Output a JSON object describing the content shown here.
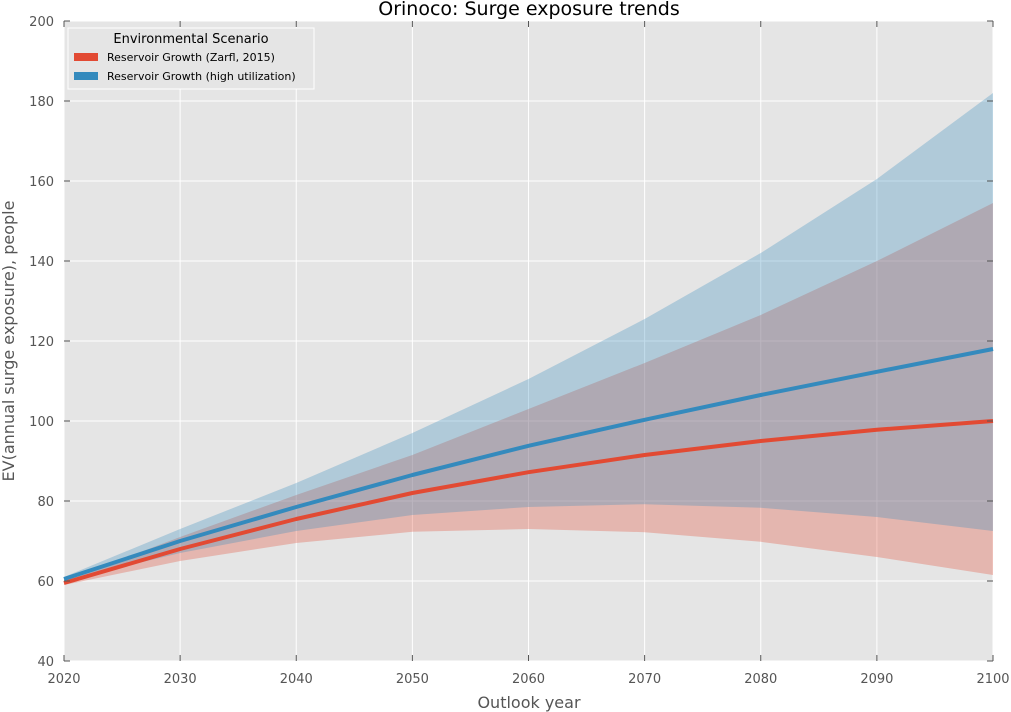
{
  "chart_data": {
    "type": "line",
    "title": "Orinoco: Surge exposure trends",
    "xlabel": "Outlook year",
    "ylabel": "EV(annual surge exposure), people",
    "xlim": [
      2020,
      2100
    ],
    "ylim": [
      40,
      200
    ],
    "xticks": [
      2020,
      2030,
      2040,
      2050,
      2060,
      2070,
      2080,
      2090,
      2100
    ],
    "yticks": [
      40,
      60,
      80,
      100,
      120,
      140,
      160,
      180,
      200
    ],
    "grid": true,
    "legend": {
      "title": "Environmental Scenario",
      "placement": "top-left"
    },
    "x": [
      2020,
      2030,
      2040,
      2050,
      2060,
      2070,
      2080,
      2090,
      2100
    ],
    "series": [
      {
        "name": "Reservoir Growth (Zarfl, 2015)",
        "color": "#e24a33",
        "band_color": "#e24a33",
        "values": [
          59.5,
          68.0,
          75.5,
          82.0,
          87.2,
          91.5,
          95.0,
          97.8,
          100.0
        ],
        "lower": [
          59.0,
          65.0,
          69.5,
          72.3,
          73.0,
          72.2,
          69.8,
          66.0,
          61.5
        ],
        "upper": [
          60.0,
          71.0,
          81.5,
          91.5,
          103.0,
          114.5,
          126.5,
          140.0,
          154.5
        ]
      },
      {
        "name": "Reservoir Growth (high utilization)",
        "color": "#348abd",
        "band_color": "#348abd",
        "values": [
          60.5,
          70.0,
          78.5,
          86.5,
          93.8,
          100.3,
          106.5,
          112.3,
          118.0
        ],
        "lower": [
          60.0,
          67.0,
          72.5,
          76.5,
          78.5,
          79.2,
          78.3,
          76.0,
          72.5
        ],
        "upper": [
          61.0,
          73.0,
          84.5,
          97.0,
          110.5,
          125.5,
          142.0,
          160.5,
          182.0
        ]
      }
    ]
  }
}
